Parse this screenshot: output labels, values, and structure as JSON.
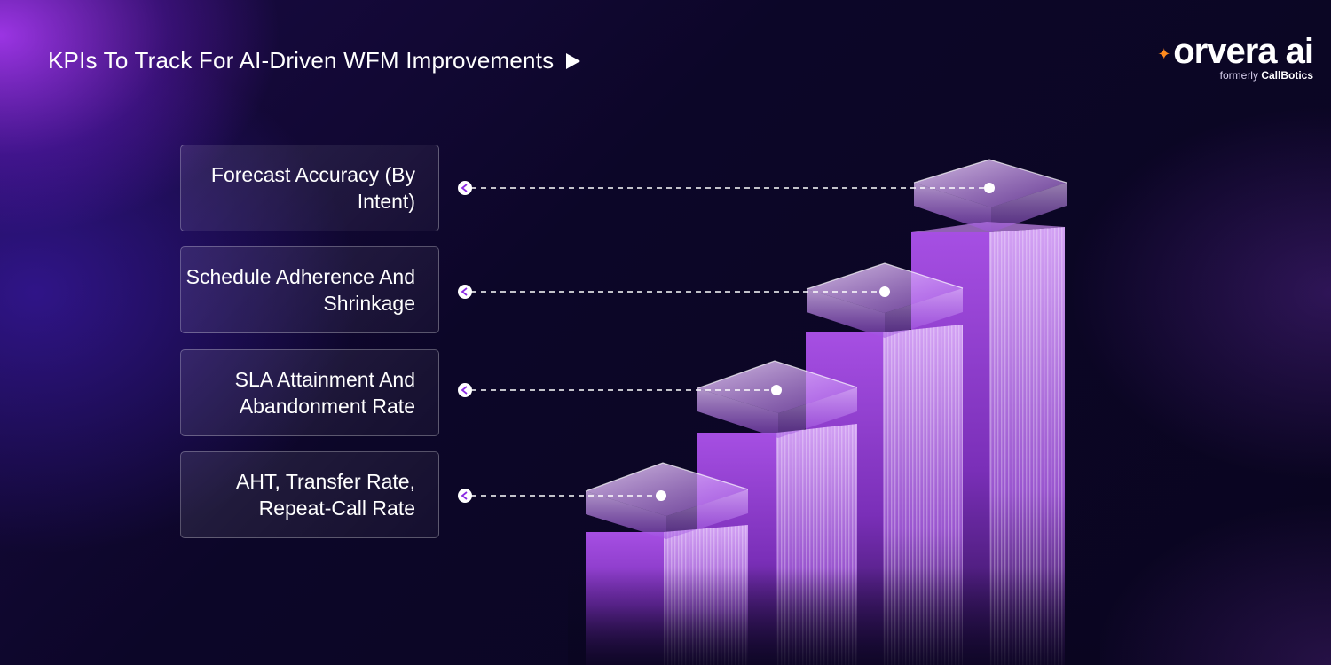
{
  "header": {
    "title": "KPIs To Track For AI-Driven WFM Improvements",
    "play_icon": "play-triangle-icon"
  },
  "brand": {
    "name": "orvera ai",
    "subtitle_prefix": "formerly",
    "subtitle_name": "CallBotics",
    "spark_color": "#ff8a1e",
    "spark_icon": "spark-icon"
  },
  "kpis": [
    {
      "label": "Forecast Accuracy (By Intent)"
    },
    {
      "label": "Schedule Adherence And Shrinkage"
    },
    {
      "label": "SLA Attainment And Abandonment Rate"
    },
    {
      "label": "AHT, Transfer Rate, Repeat-Call Rate"
    }
  ],
  "colors": {
    "background": "#0a0520",
    "accent_purple": "#b23cff",
    "bar_purple": "#9b45d6",
    "connector": "#ffffff"
  }
}
